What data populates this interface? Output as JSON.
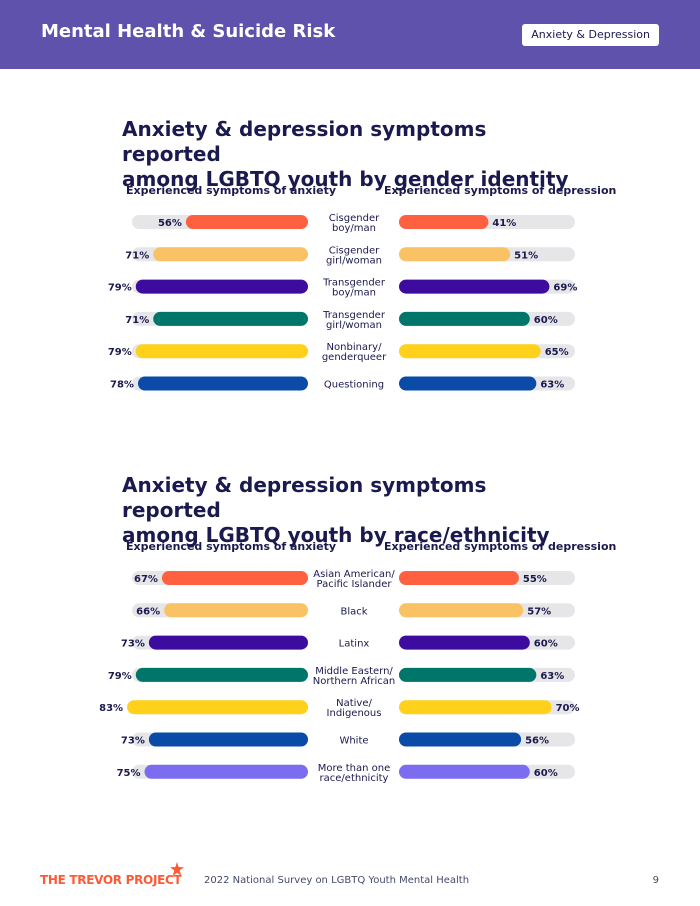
{
  "header": {
    "title": "Mental Health & Suicide Risk",
    "badge": "Anxiety & Depression"
  },
  "colors": {
    "header_bg": "#5f52ad",
    "track": "#e6e6e8",
    "label_text": "#1a1a4e"
  },
  "chart_data": [
    {
      "type": "bar",
      "title_lines": [
        "Anxiety & depression symptoms reported",
        "among LGBTQ youth by gender identity"
      ],
      "left_heading": "Experienced symptoms of anxiety",
      "right_heading": "Experienced symptoms of depression",
      "categories": [
        [
          "Cisgender",
          "boy/man"
        ],
        [
          "Cisgender",
          "girl/woman"
        ],
        [
          "Transgender",
          "boy/man"
        ],
        [
          "Transgender",
          "girl/woman"
        ],
        [
          "Nonbinary/",
          "genderqueer"
        ],
        [
          "Questioning"
        ]
      ],
      "colors": [
        "#ff6040",
        "#f9c264",
        "#3d0c9e",
        "#00756a",
        "#ffd11a",
        "#0a4ba8"
      ],
      "series": [
        {
          "side": "left",
          "values": [
            56,
            71,
            79,
            71,
            79,
            78
          ],
          "labels": [
            "56%",
            "71%",
            "79%",
            "71%",
            "79%",
            "78%"
          ]
        },
        {
          "side": "right",
          "values": [
            41,
            51,
            69,
            60,
            65,
            63
          ],
          "labels": [
            "41%",
            "51%",
            "69%",
            "60%",
            "65%",
            "63%"
          ]
        }
      ],
      "ylim": [
        0,
        100
      ]
    },
    {
      "type": "bar",
      "title_lines": [
        "Anxiety & depression symptoms reported",
        "among LGBTQ youth by race/ethnicity"
      ],
      "left_heading": "Experienced symptoms of anxiety",
      "right_heading": "Experienced symptoms of depression",
      "categories": [
        [
          "Asian American/",
          "Pacific Islander"
        ],
        [
          "Black"
        ],
        [
          "Latinx"
        ],
        [
          "Middle Eastern/",
          "Northern African"
        ],
        [
          "Native/",
          "Indigenous"
        ],
        [
          "White"
        ],
        [
          "More than one",
          "race/ethnicity"
        ]
      ],
      "colors": [
        "#ff6040",
        "#f9c264",
        "#3d0c9e",
        "#00756a",
        "#ffd11a",
        "#0a4ba8",
        "#7b6cf0"
      ],
      "series": [
        {
          "side": "left",
          "values": [
            67,
            66,
            73,
            79,
            83,
            73,
            75
          ],
          "labels": [
            "67%",
            "66%",
            "73%",
            "79%",
            "83%",
            "73%",
            "75%"
          ]
        },
        {
          "side": "right",
          "values": [
            55,
            57,
            60,
            63,
            70,
            56,
            60
          ],
          "labels": [
            "55%",
            "57%",
            "60%",
            "63%",
            "70%",
            "56%",
            "60%"
          ]
        }
      ],
      "ylim": [
        0,
        100
      ]
    }
  ],
  "footer": {
    "logo_text": "THE TREVOR PROJECT",
    "survey": "2022 National Survey on LGBTQ Youth Mental Health",
    "page": "9"
  }
}
